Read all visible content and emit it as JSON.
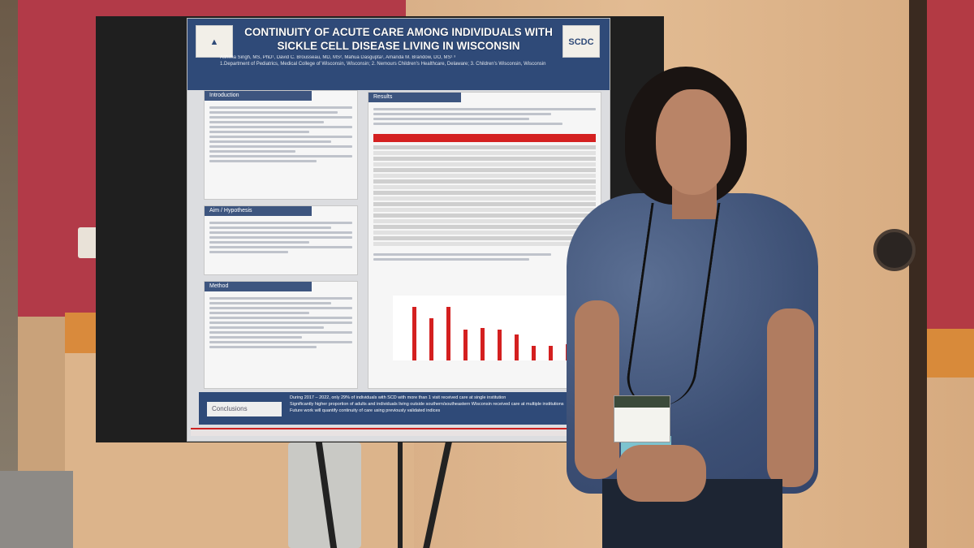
{
  "poster": {
    "title": "CONTINUITY OF ACUTE CARE AMONG INDIVIDUALS WITH SICKLE CELL DISEASE LIVING IN WISCONSIN",
    "authors": "Ashima Singh, MS, PhD¹, David C. Brousseau, MD, MS², Mahua Dasgupta¹, Amanda M. Brandow, DO, MS¹ ³",
    "affiliations": "1.Department of Pediatrics, Medical College of Wisconsin, Wisconsin; 2. Nemours Children's Healthcare, Delaware; 3. Children's Wisconsin, Wisconsin",
    "logo_right": "SCDC",
    "sections": {
      "introduction": "Introduction",
      "aim": "Aim / Hypothesis",
      "method": "Method",
      "results": "Results",
      "conclusions": "Conclusions"
    },
    "conclusion_bullets": [
      "During 2017 – 2022, only 29% of individuals with SCD with more than 1 visit received care at single institution",
      "Significantly higher proportion of adults and individuals living outside southern/southeastern Wisconsin received care at multiple institutions",
      "Future work will quantify continuity of care using previously validated indices"
    ]
  },
  "colors": {
    "poster_header": "#2f4a78",
    "accent_red": "#d42020",
    "wall_red": "#b23a48"
  }
}
